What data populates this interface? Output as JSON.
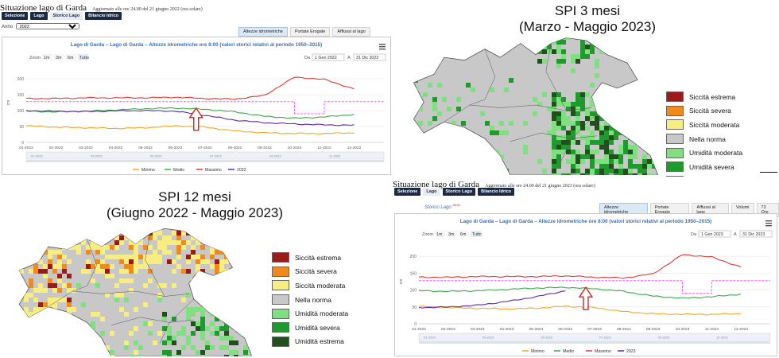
{
  "garda_dashboard": {
    "title": "Situazione lago di Garda",
    "updated_2022": "Aggiornato alle ore 24.00 del 21 giugno 2022 (ora solare)",
    "updated_2023": "Aggiornato alle ore 24.00 del 21 giugno 2023 (ora solare)",
    "main_tabs": [
      "Selezione",
      "Lago",
      "Storico Lago",
      "Bilancio Idrico"
    ],
    "anno_label": "Anno",
    "anno_value": "2022",
    "storico_link": "Storico Lago",
    "storico_link_badge": "NEW",
    "sub_tabs": [
      "Altezze idrometriche",
      "Portate Erogate",
      "Afflussi al lago",
      "Volumi",
      "72 Ore"
    ],
    "chart_title": "Lago di Garda – Lago di Garda – Altezze idrometriche ore 8:00 (valori storici relativi al periodo 1950–2015)",
    "zoom_label": "Zoom",
    "zoom_buttons": [
      "1m",
      "3m",
      "6m",
      "Tutto"
    ],
    "da_label": "Da",
    "a_label": "A",
    "range_2022": [
      "1 Gen 2022",
      "31 Dic 2022"
    ],
    "range_2023": [
      "1 Gen 2023",
      "31 Dic 2023"
    ],
    "menu_icon": "hamburger-menu-icon",
    "arrow_icon": "red-outline-up-arrow-icon"
  },
  "chart_data": [
    {
      "type": "line",
      "title": "Lago di Garda – Lago di Garda – Altezze idrometriche ore 8:00 (valori storici relativi al periodo 1950–2015)",
      "year": "2022",
      "ylabel": "cm",
      "ylim": [
        0,
        250
      ],
      "y_ticks": [
        0,
        50,
        100,
        150,
        200
      ],
      "x": [
        "01-2022",
        "02-2022",
        "03-2022",
        "04-2022",
        "05-2022",
        "06-2022",
        "07-2022",
        "08-2022",
        "09-2022",
        "10-2022",
        "11-2022",
        "12-2022"
      ],
      "arrow_at_month": 5.7,
      "legend_position": "bottom",
      "colors": {
        "Minimo": "#f5a623",
        "Medio": "#3cab49",
        "Massimo": "#e53935",
        "2022": "#5b2bb0",
        "threshold": "#ff55ff"
      },
      "series": [
        {
          "name": "Minimo",
          "values": [
            52,
            48,
            46,
            44,
            46,
            52,
            48,
            36,
            30,
            28,
            28,
            30
          ]
        },
        {
          "name": "Medio",
          "values": [
            98,
            96,
            98,
            102,
            106,
            108,
            104,
            96,
            82,
            76,
            80,
            88
          ]
        },
        {
          "name": "Massimo",
          "values": [
            138,
            138,
            140,
            140,
            140,
            142,
            138,
            136,
            148,
            205,
            198,
            168
          ]
        },
        {
          "name": "2022",
          "values": [
            100,
            98,
            97,
            99,
            100,
            98,
            85,
            70,
            62,
            58,
            55,
            54
          ]
        },
        {
          "name": "threshold",
          "values": [
            128,
            128,
            128,
            128,
            128,
            128,
            128,
            128,
            128,
            90,
            128,
            128
          ]
        }
      ]
    },
    {
      "type": "line",
      "title": "Lago di Garda – Lago di Garda – Altezze idrometriche ore 8:00 (valori storici relativi al periodo 1950–2015)",
      "year": "2023",
      "ylabel": "cm",
      "ylim": [
        0,
        250
      ],
      "y_ticks": [
        0,
        50,
        100,
        150,
        200
      ],
      "x": [
        "01-2023",
        "02-2023",
        "03-2023",
        "04-2023",
        "05-2023",
        "06-2023",
        "07-2023",
        "08-2023",
        "09-2023",
        "10-2023",
        "11-2023",
        "12-2023"
      ],
      "arrow_at_month": 5.7,
      "legend_position": "bottom",
      "colors": {
        "Minimo": "#f5a623",
        "Medio": "#3cab49",
        "Massimo": "#e53935",
        "2023": "#5b2bb0",
        "threshold": "#ff55ff"
      },
      "series": [
        {
          "name": "Minimo",
          "values": [
            52,
            48,
            46,
            44,
            46,
            52,
            48,
            36,
            30,
            28,
            28,
            30
          ]
        },
        {
          "name": "Medio",
          "values": [
            98,
            96,
            98,
            102,
            106,
            108,
            104,
            96,
            82,
            76,
            80,
            88
          ]
        },
        {
          "name": "Massimo",
          "values": [
            138,
            138,
            140,
            140,
            140,
            142,
            138,
            136,
            148,
            205,
            198,
            168
          ]
        },
        {
          "name": "2023",
          "values": [
            48,
            50,
            55,
            66,
            80,
            98,
            null,
            null,
            null,
            null,
            null,
            null
          ]
        },
        {
          "name": "threshold",
          "values": [
            128,
            128,
            128,
            128,
            128,
            128,
            128,
            128,
            128,
            90,
            128,
            128
          ]
        }
      ]
    }
  ],
  "spi_maps": [
    {
      "title_line1": "SPI 3 mesi",
      "title_line2": "(Marzo - Maggio 2023)"
    },
    {
      "title_line1": "SPI 12 mesi",
      "title_line2": "(Giugno 2022 - Maggio 2023)"
    }
  ],
  "spi_legend": [
    {
      "label": "Siccità estrema",
      "color": "#9b1b1b"
    },
    {
      "label": "Siccità severa",
      "color": "#f08a1c"
    },
    {
      "label": "Siccità moderata",
      "color": "#f7ee7f"
    },
    {
      "label": "Nella norma",
      "color": "#c8c8c8"
    },
    {
      "label": "Umidità moderata",
      "color": "#7ee07e"
    },
    {
      "label": "Umidità severa",
      "color": "#1f9a2c"
    },
    {
      "label": "Umidità estrema",
      "color": "#234f1e"
    }
  ]
}
